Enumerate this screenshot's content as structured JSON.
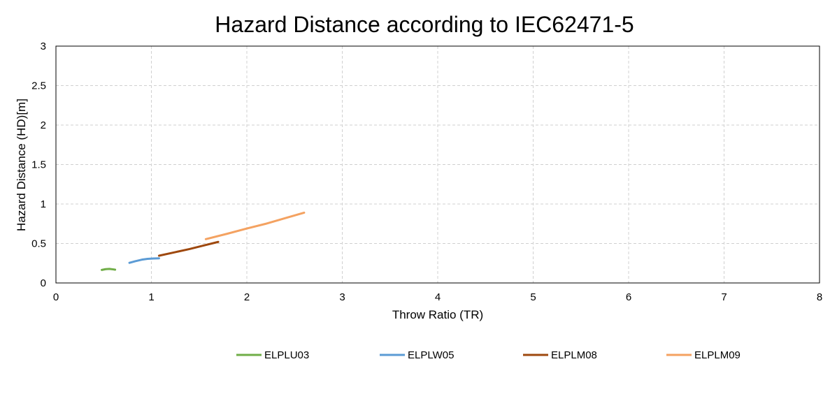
{
  "chart_data": {
    "type": "line",
    "title": "Hazard Distance according to IEC62471-5",
    "xlabel": "Throw Ratio (TR)",
    "ylabel": "Hazard Distance (HD)[m]",
    "xlim": [
      0,
      8
    ],
    "ylim": [
      0,
      3
    ],
    "x_ticks": [
      0,
      1,
      2,
      3,
      4,
      5,
      6,
      7,
      8
    ],
    "y_ticks": [
      0,
      0.5,
      1,
      1.5,
      2,
      2.5,
      3
    ],
    "x_tick_labels": [
      "0",
      "1",
      "2",
      "3",
      "4",
      "5",
      "6",
      "7",
      "8"
    ],
    "y_tick_labels": [
      "0",
      "0.5",
      "1",
      "1.5",
      "2",
      "2.5",
      "3"
    ],
    "grid": true,
    "legend_position": "bottom",
    "series": [
      {
        "name": "ELPLU03",
        "color": "#70ad47",
        "points": [
          [
            0.48,
            0.165
          ],
          [
            0.52,
            0.175
          ],
          [
            0.56,
            0.178
          ],
          [
            0.6,
            0.172
          ],
          [
            0.62,
            0.168
          ]
        ]
      },
      {
        "name": "ELPLW05",
        "color": "#5b9bd5",
        "points": [
          [
            0.77,
            0.255
          ],
          [
            0.83,
            0.275
          ],
          [
            0.9,
            0.295
          ],
          [
            0.96,
            0.305
          ],
          [
            1.02,
            0.31
          ],
          [
            1.08,
            0.312
          ]
        ]
      },
      {
        "name": "ELPLM08",
        "color": "#9e480e",
        "points": [
          [
            1.08,
            0.345
          ],
          [
            1.25,
            0.39
          ],
          [
            1.4,
            0.43
          ],
          [
            1.55,
            0.475
          ],
          [
            1.7,
            0.52
          ]
        ]
      },
      {
        "name": "ELPLM09",
        "color": "#f4a261",
        "points": [
          [
            1.57,
            0.555
          ],
          [
            1.8,
            0.625
          ],
          [
            2.0,
            0.69
          ],
          [
            2.2,
            0.75
          ],
          [
            2.4,
            0.82
          ],
          [
            2.6,
            0.89
          ]
        ]
      }
    ]
  }
}
